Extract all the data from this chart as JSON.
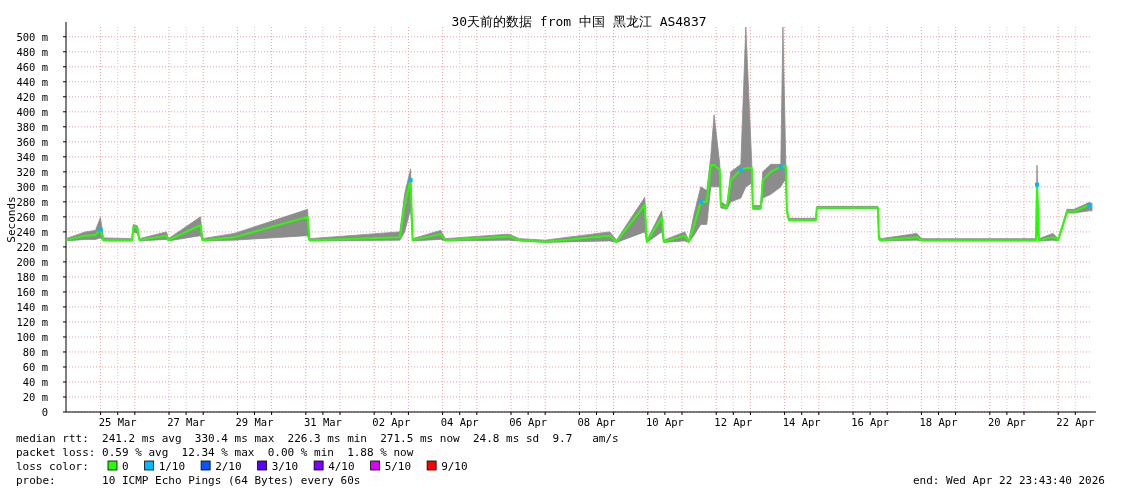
{
  "chart_data": {
    "type": "line",
    "title": "30天前的数据 from 中国 黑龙江 AS4837",
    "ylabel": "Seconds",
    "legend_title": "loss color:",
    "legend": "bottom",
    "grid": true,
    "xlim": [
      "2026-03-23T23:43",
      "2026-04-22T23:43"
    ],
    "ylim": [
      0,
      513
    ],
    "xticks": [
      {
        "value": "2026-03-25T12:00",
        "label": "25 Mar"
      },
      {
        "value": "2026-03-27T12:00",
        "label": "27 Mar"
      },
      {
        "value": "2026-03-29T12:00",
        "label": "29 Mar"
      },
      {
        "value": "2026-03-31T12:00",
        "label": "31 Mar"
      },
      {
        "value": "2026-04-02T12:00",
        "label": "02 Apr"
      },
      {
        "value": "2026-04-04T12:00",
        "label": "04 Apr"
      },
      {
        "value": "2026-04-06T12:00",
        "label": "06 Apr"
      },
      {
        "value": "2026-04-08T12:00",
        "label": "08 Apr"
      },
      {
        "value": "2026-04-10T12:00",
        "label": "10 Apr"
      },
      {
        "value": "2026-04-12T12:00",
        "label": "12 Apr"
      },
      {
        "value": "2026-04-14T12:00",
        "label": "14 Apr"
      },
      {
        "value": "2026-04-16T12:00",
        "label": "16 Apr"
      },
      {
        "value": "2026-04-18T12:00",
        "label": "18 Apr"
      },
      {
        "value": "2026-04-20T12:00",
        "label": "20 Apr"
      },
      {
        "value": "2026-04-22T12:00",
        "label": "22 Apr"
      },
      {
        "value": "2026-03-25T00:00",
        "label": null
      },
      {
        "value": "2026-03-26T00:00",
        "label": null
      },
      {
        "value": "2026-03-27T00:00",
        "label": null
      },
      {
        "value": "2026-03-28T00:00",
        "label": null
      },
      {
        "value": "2026-03-29T00:00",
        "label": null
      },
      {
        "value": "2026-03-30T00:00",
        "label": null
      },
      {
        "value": "2026-03-31T00:00",
        "label": null
      },
      {
        "value": "2026-04-01T00:00",
        "label": null
      },
      {
        "value": "2026-04-02T00:00",
        "label": null
      },
      {
        "value": "2026-04-03T00:00",
        "label": null
      },
      {
        "value": "2026-04-04T00:00",
        "label": null
      },
      {
        "value": "2026-04-05T00:00",
        "label": null
      },
      {
        "value": "2026-04-06T00:00",
        "label": null
      },
      {
        "value": "2026-04-07T00:00",
        "label": null
      },
      {
        "value": "2026-04-08T00:00",
        "label": null
      },
      {
        "value": "2026-04-09T00:00",
        "label": null
      },
      {
        "value": "2026-04-10T00:00",
        "label": null
      },
      {
        "value": "2026-04-11T00:00",
        "label": null
      },
      {
        "value": "2026-04-12T00:00",
        "label": null
      },
      {
        "value": "2026-04-13T00:00",
        "label": null
      },
      {
        "value": "2026-04-14T00:00",
        "label": null
      },
      {
        "value": "2026-04-15T00:00",
        "label": null
      },
      {
        "value": "2026-04-16T00:00",
        "label": null
      },
      {
        "value": "2026-04-17T00:00",
        "label": null
      },
      {
        "value": "2026-04-18T00:00",
        "label": null
      },
      {
        "value": "2026-04-19T00:00",
        "label": null
      },
      {
        "value": "2026-04-20T00:00",
        "label": null
      },
      {
        "value": "2026-04-21T00:00",
        "label": null
      },
      {
        "value": "2026-04-22T00:00",
        "label": null
      }
    ],
    "yticks": [
      0,
      {
        "value": 20,
        "label": "20 m"
      },
      {
        "value": 40,
        "label": "40 m"
      },
      {
        "value": 60,
        "label": "60 m"
      },
      {
        "value": 80,
        "label": "80 m"
      },
      {
        "value": 100,
        "label": "100 m"
      },
      {
        "value": 120,
        "label": "120 m"
      },
      {
        "value": 140,
        "label": "140 m"
      },
      {
        "value": 160,
        "label": "160 m"
      },
      {
        "value": 180,
        "label": "180 m"
      },
      {
        "value": 200,
        "label": "200 m"
      },
      {
        "value": 220,
        "label": "220 m"
      },
      {
        "value": 240,
        "label": "240 m"
      },
      {
        "value": 260,
        "label": "260 m"
      },
      {
        "value": 280,
        "label": "280 m"
      },
      {
        "value": 300,
        "label": "300 m"
      },
      {
        "value": 320,
        "label": "320 m"
      },
      {
        "value": 340,
        "label": "340 m"
      },
      {
        "value": 360,
        "label": "360 m"
      },
      {
        "value": 380,
        "label": "380 m"
      },
      {
        "value": 400,
        "label": "400 m"
      },
      {
        "value": 420,
        "label": "420 m"
      },
      {
        "value": 440,
        "label": "440 m"
      },
      {
        "value": 460,
        "label": "460 m"
      },
      {
        "value": 480,
        "label": "480 m"
      },
      {
        "value": 500,
        "label": "500 m"
      }
    ],
    "series": [
      {
        "name": "0",
        "color": "#26ff00",
        "x": [
          "2026-03-23T23:43",
          "2026-03-24T13:20",
          "2026-03-24T20:22",
          "2026-03-24T23:53",
          "2026-03-25T02:00",
          "2026-03-25T22:00",
          "2026-03-25T23:02",
          "2026-03-26T01:51",
          "2026-03-26T03:16",
          "2026-03-26T22:13",
          "2026-03-26T23:37",
          "2026-03-27T22:05",
          "2026-03-27T23:30",
          "2026-03-28T21:58",
          "2026-03-31T01:13",
          "2026-03-31T02:37",
          "2026-04-02T18:00",
          "2026-04-02T21:20",
          "2026-04-03T01:32",
          "2026-04-03T02:57",
          "2026-04-03T22:36",
          "2026-04-04T02:00",
          "2026-04-05T22:22",
          "2026-04-06T06:00",
          "2026-04-07T00:00",
          "2026-04-08T21:17",
          "2026-04-09T02:00",
          "2026-04-09T21:52",
          "2026-04-09T23:17",
          "2026-04-10T09:48",
          "2026-04-10T11:12",
          "2026-04-11T01:57",
          "2026-04-11T04:45",
          "2026-04-11T08:15",
          "2026-04-11T13:10",
          "2026-04-11T17:23",
          "2026-04-11T20:11",
          "2026-04-11T22:30",
          "2026-04-12T02:31",
          "2026-04-12T03:13",
          "2026-04-12T07:26",
          "2026-04-12T10:14",
          "2026-04-12T17:16",
          "2026-04-12T20:47",
          "2026-04-13T00:59",
          "2026-04-13T01:41",
          "2026-04-13T07:17",
          "2026-04-13T08:42",
          "2026-04-13T14:19",
          "2026-04-13T21:20",
          "2026-04-13T22:48",
          "2026-04-14T00:51",
          "2026-04-14T01:33",
          "2026-04-14T02:57",
          "2026-04-14T21:55",
          "2026-04-14T22:37",
          "2026-04-16T17:27",
          "2026-04-16T18:09",
          "2026-04-16T19:33",
          "2026-04-17T20:50",
          "2026-04-18T00:00",
          "2026-04-21T08:24",
          "2026-04-21T09:06",
          "2026-04-21T10:31",
          "2026-04-21T20:20",
          "2026-04-22T00:00",
          "2026-04-22T06:10",
          "2026-04-22T11:05",
          "2026-04-22T21:38",
          "2026-04-22T23:43"
        ],
        "values": [
          229,
          235,
          236,
          243,
          229,
          229,
          247,
          245,
          229,
          235,
          229,
          249,
          229,
          233,
          260,
          229,
          233,
          276,
          309,
          229,
          237,
          229,
          234,
          229,
          227,
          235,
          227,
          276,
          227,
          259,
          227,
          235,
          227,
          247,
          280,
          280,
          329,
          329,
          323,
          276,
          272,
          309,
          323,
          325,
          325,
          272,
          272,
          309,
          320,
          327,
          327,
          327,
          269,
          256,
          256,
          272,
          272,
          232,
          229,
          233,
          229,
          229,
          303,
          229,
          233,
          229,
          267,
          267,
          276,
          275
        ],
        "lower": [
          228,
          230,
          230,
          232,
          228,
          228,
          240,
          238,
          228,
          230,
          228,
          235,
          228,
          229,
          235,
          228,
          229,
          240,
          270,
          228,
          230,
          228,
          229,
          228,
          226,
          228,
          226,
          240,
          226,
          240,
          226,
          228,
          226,
          235,
          250,
          250,
          300,
          300,
          300,
          272,
          270,
          280,
          285,
          300,
          305,
          270,
          270,
          285,
          290,
          300,
          305,
          310,
          265,
          255,
          255,
          271,
          271,
          229,
          228,
          229,
          228,
          228,
          240,
          228,
          229,
          228,
          265,
          265,
          268,
          268
        ],
        "upper": [
          231,
          240,
          242,
          259,
          232,
          231,
          250,
          248,
          231,
          240,
          231,
          260,
          231,
          238,
          270,
          231,
          240,
          290,
          324,
          231,
          242,
          231,
          237,
          231,
          229,
          240,
          229,
          286,
          229,
          268,
          229,
          240,
          229,
          262,
          300,
          295,
          340,
          396,
          330,
          280,
          275,
          320,
          330,
          513,
          330,
          275,
          275,
          320,
          330,
          330,
          513,
          330,
          272,
          258,
          258,
          274,
          274,
          235,
          231,
          238,
          231,
          231,
          329,
          231,
          238,
          231,
          270,
          270,
          279,
          278
        ]
      },
      {
        "name": "1/10",
        "color": "#00b8ff",
        "type": "scatter",
        "marker": "square",
        "x": [
          "2026-03-24T23:53",
          "2026-04-03T01:32",
          "2026-04-11T13:10",
          "2026-04-12T17:16",
          "2026-04-13T21:20",
          "2026-04-21T09:06",
          "2026-04-22T21:38"
        ],
        "values": [
          243,
          309,
          280,
          323,
          327,
          303,
          276
        ]
      },
      {
        "name": "2/10",
        "color": "#0059ff"
      },
      {
        "name": "3/10",
        "color": "#5e00ff"
      },
      {
        "name": "4/10",
        "color": "#7e00ff"
      },
      {
        "name": "5/10",
        "color": "#dd00ff"
      },
      {
        "name": "9/10",
        "color": "#ff0000"
      }
    ],
    "annotations": [
      "median rtt:  241.2 ms avg  330.4 ms max  226.3 ms min  271.5 ms now  24.8 ms sd  9.7   am/s",
      "packet loss: 0.59 % avg  12.34 % max  0.00 % min  1.88 % now",
      "probe:       10 ICMP Echo Pings (64 Bytes) every 60s",
      "end: Wed Apr 22 23:43:40 2026"
    ]
  }
}
